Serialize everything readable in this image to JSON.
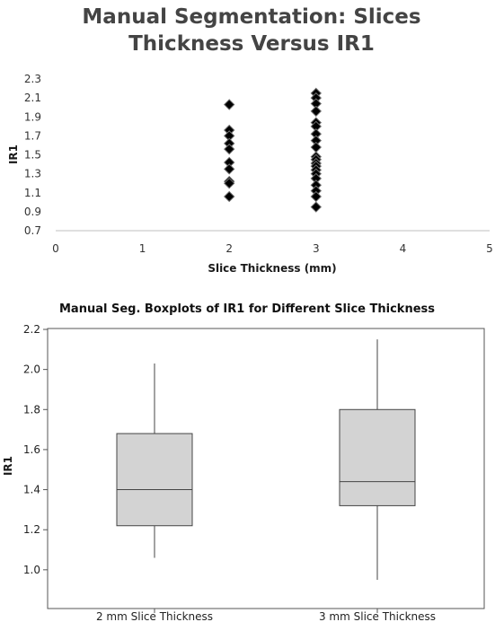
{
  "chart_data": [
    {
      "type": "scatter",
      "title": [
        "Manual Segmentation: Slices",
        "Thickness Versus IR1"
      ],
      "xlabel": "Slice Thickness (mm)",
      "ylabel": "IR1",
      "xlim": [
        0,
        5
      ],
      "ylim": [
        0.7,
        2.3
      ],
      "xticks": [
        "0",
        "1",
        "2",
        "3",
        "4",
        "5"
      ],
      "yticks": [
        "0.7",
        "0.9",
        "1.1",
        "1.3",
        "1.5",
        "1.7",
        "1.9",
        "2.1",
        "2.3"
      ],
      "grid": false,
      "marker": "diamond",
      "marker_color": "#000000",
      "points": [
        {
          "x": 2,
          "y": 2.03
        },
        {
          "x": 2,
          "y": 1.76
        },
        {
          "x": 2,
          "y": 1.7
        },
        {
          "x": 2,
          "y": 1.62
        },
        {
          "x": 2,
          "y": 1.56
        },
        {
          "x": 2,
          "y": 1.42
        },
        {
          "x": 2,
          "y": 1.35
        },
        {
          "x": 2,
          "y": 1.22
        },
        {
          "x": 2,
          "y": 1.2
        },
        {
          "x": 2,
          "y": 1.06
        },
        {
          "x": 3,
          "y": 2.15
        },
        {
          "x": 3,
          "y": 2.1
        },
        {
          "x": 3,
          "y": 2.04
        },
        {
          "x": 3,
          "y": 1.96
        },
        {
          "x": 3,
          "y": 1.84
        },
        {
          "x": 3,
          "y": 1.8
        },
        {
          "x": 3,
          "y": 1.72
        },
        {
          "x": 3,
          "y": 1.65
        },
        {
          "x": 3,
          "y": 1.58
        },
        {
          "x": 3,
          "y": 1.48
        },
        {
          "x": 3,
          "y": 1.45
        },
        {
          "x": 3,
          "y": 1.41
        },
        {
          "x": 3,
          "y": 1.38
        },
        {
          "x": 3,
          "y": 1.34
        },
        {
          "x": 3,
          "y": 1.3
        },
        {
          "x": 3,
          "y": 1.25
        },
        {
          "x": 3,
          "y": 1.18
        },
        {
          "x": 3,
          "y": 1.12
        },
        {
          "x": 3,
          "y": 1.06
        },
        {
          "x": 3,
          "y": 0.95
        }
      ]
    },
    {
      "type": "box",
      "title": "Manual Seg. Boxplots of IR1 for Different Slice Thickness",
      "ylabel": "IR1",
      "ylim": [
        0.95,
        2.2
      ],
      "yticks": [
        "1.0",
        "1.2",
        "1.4",
        "1.6",
        "1.8",
        "2.0",
        "2.2"
      ],
      "box_fill": "#d3d3d3",
      "categories": [
        "2 mm Slice Thickness",
        "3 mm Slice Thickness"
      ],
      "boxes": [
        {
          "category": "2 mm Slice Thickness",
          "min": 1.06,
          "q1": 1.22,
          "median": 1.4,
          "q3": 1.68,
          "max": 2.03
        },
        {
          "category": "3 mm Slice Thickness",
          "min": 0.95,
          "q1": 1.32,
          "median": 1.44,
          "q3": 1.8,
          "max": 2.15
        }
      ]
    }
  ]
}
